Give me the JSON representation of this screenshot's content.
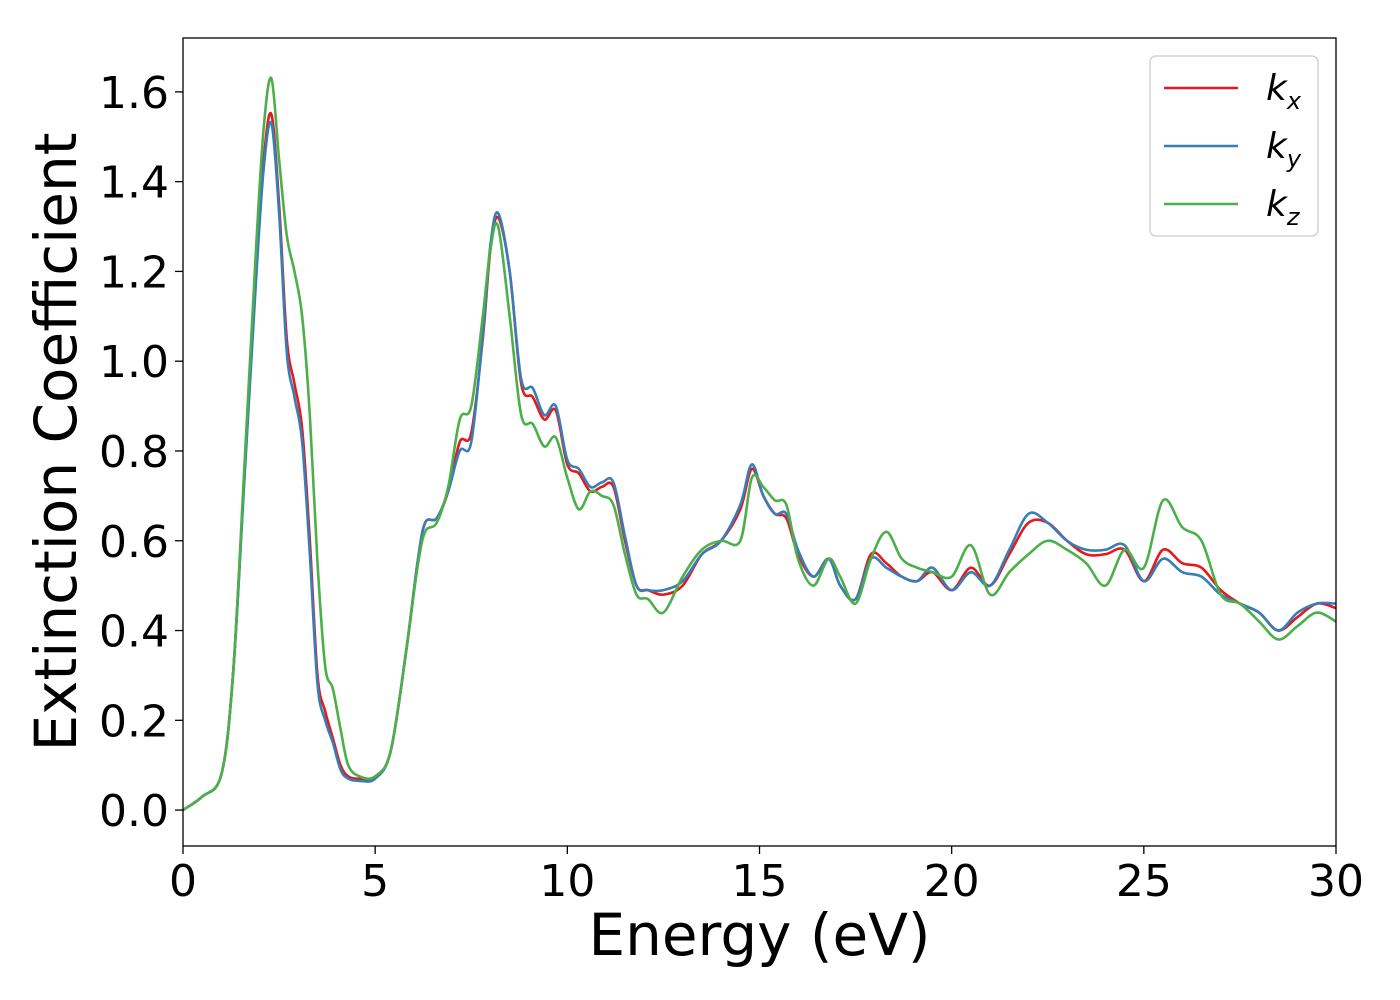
{
  "chart_data": {
    "type": "line",
    "title": "",
    "xlabel": "Energy (eV)",
    "ylabel": "Extinction Coefficient",
    "xlim": [
      0,
      30
    ],
    "ylim": [
      -0.08,
      1.72
    ],
    "xticks": [
      0,
      5,
      10,
      15,
      20,
      25,
      30
    ],
    "xtick_labels": [
      "0",
      "5",
      "10",
      "15",
      "20",
      "25",
      "30"
    ],
    "yticks": [
      0.0,
      0.2,
      0.4,
      0.6,
      0.8,
      1.0,
      1.2,
      1.4,
      1.6
    ],
    "ytick_labels": [
      "0.0",
      "0.2",
      "0.4",
      "0.6",
      "0.8",
      "1.0",
      "1.2",
      "1.4",
      "1.6"
    ],
    "grid": false,
    "legend_position": "top-right",
    "series": [
      {
        "name": "k_x",
        "label_main": "k",
        "label_sub": "x",
        "color": "#e41a1c",
        "x": [
          0,
          0.5,
          1.0,
          1.3,
          1.6,
          1.9,
          2.1,
          2.3,
          2.5,
          2.7,
          2.9,
          3.1,
          3.3,
          3.5,
          3.7,
          3.9,
          4.1,
          4.3,
          4.6,
          5.0,
          5.4,
          5.8,
          6.1,
          6.3,
          6.6,
          6.9,
          7.2,
          7.5,
          7.8,
          8.0,
          8.2,
          8.5,
          8.8,
          9.1,
          9.4,
          9.7,
          10.0,
          10.3,
          10.6,
          10.9,
          11.2,
          11.5,
          11.8,
          12.1,
          12.5,
          13.0,
          13.5,
          14.0,
          14.5,
          14.8,
          15.1,
          15.4,
          15.7,
          16.0,
          16.4,
          16.8,
          17.1,
          17.5,
          17.9,
          18.3,
          18.7,
          19.1,
          19.5,
          20.0,
          20.5,
          21.0,
          21.5,
          22.0,
          22.5,
          23.0,
          23.5,
          24.0,
          24.5,
          25.0,
          25.5,
          26.0,
          26.5,
          27.0,
          27.5,
          28.0,
          28.5,
          29.0,
          29.5,
          30.0
        ],
        "y": [
          0.0,
          0.03,
          0.08,
          0.3,
          0.75,
          1.2,
          1.45,
          1.55,
          1.35,
          1.05,
          0.95,
          0.85,
          0.6,
          0.3,
          0.22,
          0.16,
          0.1,
          0.075,
          0.07,
          0.075,
          0.13,
          0.35,
          0.55,
          0.64,
          0.65,
          0.71,
          0.82,
          0.84,
          1.05,
          1.25,
          1.32,
          1.2,
          0.95,
          0.92,
          0.87,
          0.89,
          0.77,
          0.75,
          0.71,
          0.72,
          0.72,
          0.6,
          0.5,
          0.49,
          0.48,
          0.5,
          0.57,
          0.6,
          0.67,
          0.76,
          0.7,
          0.66,
          0.65,
          0.57,
          0.52,
          0.56,
          0.5,
          0.47,
          0.57,
          0.55,
          0.52,
          0.51,
          0.53,
          0.49,
          0.54,
          0.5,
          0.57,
          0.64,
          0.64,
          0.6,
          0.57,
          0.57,
          0.58,
          0.51,
          0.58,
          0.55,
          0.54,
          0.49,
          0.46,
          0.44,
          0.4,
          0.43,
          0.46,
          0.45
        ]
      },
      {
        "name": "k_y",
        "label_main": "k",
        "label_sub": "y",
        "color": "#377eb8",
        "x": [
          0,
          0.5,
          1.0,
          1.3,
          1.6,
          1.9,
          2.1,
          2.3,
          2.5,
          2.7,
          2.9,
          3.1,
          3.3,
          3.5,
          3.7,
          3.9,
          4.1,
          4.3,
          4.6,
          5.0,
          5.4,
          5.8,
          6.1,
          6.3,
          6.6,
          6.9,
          7.2,
          7.5,
          7.8,
          8.0,
          8.2,
          8.5,
          8.8,
          9.1,
          9.4,
          9.7,
          10.0,
          10.3,
          10.6,
          10.9,
          11.2,
          11.5,
          11.8,
          12.1,
          12.5,
          13.0,
          13.5,
          14.0,
          14.5,
          14.8,
          15.1,
          15.4,
          15.7,
          16.0,
          16.4,
          16.8,
          17.1,
          17.5,
          17.9,
          18.3,
          18.7,
          19.1,
          19.5,
          20.0,
          20.5,
          21.0,
          21.5,
          22.0,
          22.5,
          23.0,
          23.5,
          24.0,
          24.5,
          25.0,
          25.5,
          26.0,
          26.5,
          27.0,
          27.5,
          28.0,
          28.5,
          29.0,
          29.5,
          30.0
        ],
        "y": [
          0.0,
          0.03,
          0.08,
          0.3,
          0.74,
          1.18,
          1.43,
          1.53,
          1.33,
          1.02,
          0.92,
          0.82,
          0.57,
          0.28,
          0.2,
          0.15,
          0.09,
          0.07,
          0.065,
          0.07,
          0.13,
          0.35,
          0.55,
          0.64,
          0.65,
          0.71,
          0.8,
          0.82,
          1.06,
          1.26,
          1.33,
          1.2,
          0.96,
          0.94,
          0.88,
          0.9,
          0.78,
          0.76,
          0.72,
          0.73,
          0.73,
          0.61,
          0.5,
          0.49,
          0.49,
          0.51,
          0.57,
          0.6,
          0.68,
          0.77,
          0.7,
          0.66,
          0.66,
          0.58,
          0.52,
          0.56,
          0.5,
          0.47,
          0.56,
          0.54,
          0.52,
          0.51,
          0.54,
          0.49,
          0.53,
          0.5,
          0.58,
          0.66,
          0.64,
          0.6,
          0.58,
          0.58,
          0.59,
          0.51,
          0.56,
          0.53,
          0.52,
          0.48,
          0.46,
          0.44,
          0.4,
          0.44,
          0.46,
          0.46
        ]
      },
      {
        "name": "k_z",
        "label_main": "k",
        "label_sub": "z",
        "color": "#4daf4a",
        "x": [
          0,
          0.5,
          1.0,
          1.3,
          1.6,
          1.9,
          2.1,
          2.3,
          2.5,
          2.7,
          2.9,
          3.1,
          3.3,
          3.5,
          3.7,
          3.9,
          4.1,
          4.3,
          4.6,
          5.0,
          5.4,
          5.8,
          6.1,
          6.3,
          6.6,
          6.9,
          7.2,
          7.5,
          7.8,
          8.0,
          8.2,
          8.5,
          8.8,
          9.1,
          9.4,
          9.7,
          10.0,
          10.3,
          10.6,
          10.9,
          11.2,
          11.5,
          11.8,
          12.1,
          12.5,
          13.0,
          13.5,
          14.0,
          14.5,
          14.8,
          15.1,
          15.4,
          15.7,
          16.0,
          16.4,
          16.8,
          17.1,
          17.5,
          17.9,
          18.3,
          18.7,
          19.1,
          19.5,
          20.0,
          20.5,
          21.0,
          21.5,
          22.0,
          22.5,
          23.0,
          23.5,
          24.0,
          24.5,
          25.0,
          25.5,
          26.0,
          26.5,
          27.0,
          27.5,
          28.0,
          28.5,
          29.0,
          29.5,
          30.0
        ],
        "y": [
          0.0,
          0.03,
          0.08,
          0.3,
          0.77,
          1.25,
          1.52,
          1.63,
          1.45,
          1.28,
          1.2,
          1.1,
          0.88,
          0.55,
          0.32,
          0.27,
          0.18,
          0.1,
          0.075,
          0.075,
          0.13,
          0.35,
          0.54,
          0.62,
          0.64,
          0.72,
          0.87,
          0.9,
          1.1,
          1.25,
          1.3,
          1.1,
          0.88,
          0.86,
          0.81,
          0.83,
          0.74,
          0.67,
          0.71,
          0.7,
          0.68,
          0.57,
          0.48,
          0.47,
          0.44,
          0.52,
          0.58,
          0.6,
          0.6,
          0.74,
          0.72,
          0.69,
          0.68,
          0.56,
          0.5,
          0.56,
          0.52,
          0.46,
          0.56,
          0.62,
          0.56,
          0.54,
          0.53,
          0.52,
          0.59,
          0.48,
          0.53,
          0.57,
          0.6,
          0.58,
          0.55,
          0.5,
          0.58,
          0.54,
          0.69,
          0.63,
          0.6,
          0.48,
          0.46,
          0.42,
          0.38,
          0.41,
          0.44,
          0.42
        ]
      }
    ]
  }
}
